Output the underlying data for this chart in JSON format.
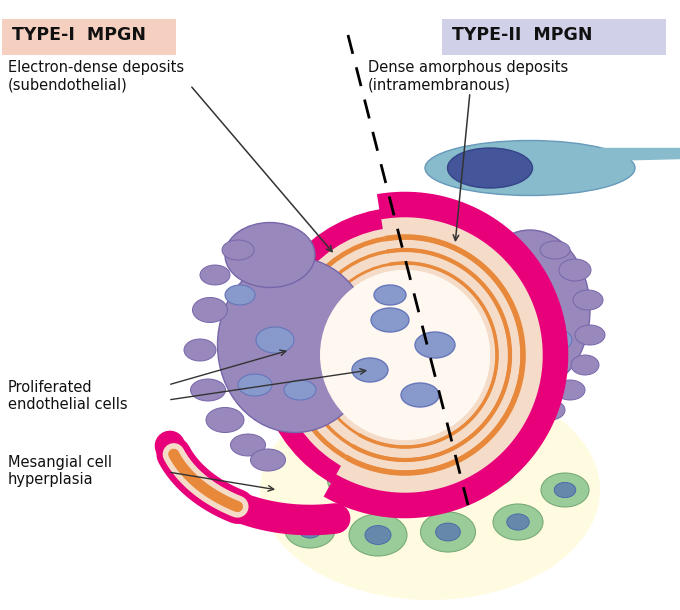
{
  "bg_color": "#ffffff",
  "type1_label": "TYPE-I  MPGN",
  "type2_label": "TYPE-II  MPGN",
  "type1_bg": "#f5d0c0",
  "type2_bg": "#d0d0e8",
  "label1": "Electron-dense deposits\n(subendothelial)",
  "label2": "Dense amorphous deposits\n(intramembranous)",
  "label3": "Proliferated\nendothelial cells",
  "label4": "Mesangial cell\nhyperplasia",
  "pink_membrane": "#e8007a",
  "light_pink": "#f9c0d8",
  "peach": "#f5dcc8",
  "purple_main": "#9988bb",
  "purple_dark": "#7766aa",
  "purple_nuc": "#5566aa",
  "blue_endo": "#88bbcc",
  "blue_endo_dark": "#6699bb",
  "blue_nuc": "#445599",
  "blue_oval": "#6677bb",
  "blue_oval_fill": "#8899cc",
  "green_cell_fill": "#99cc99",
  "green_cell_edge": "#77aa77",
  "green_nuc": "#4488aa",
  "orange_line": "#e8883a",
  "yellow_bg": "#fffbe0",
  "arrow_color": "#333333"
}
